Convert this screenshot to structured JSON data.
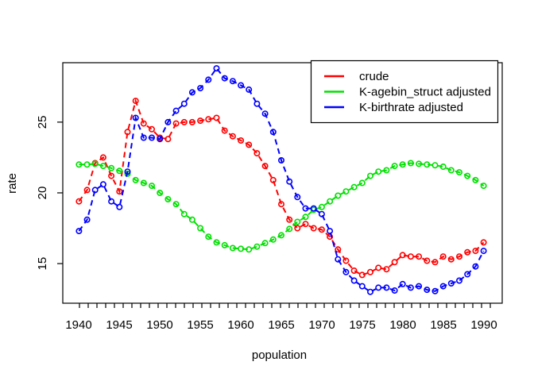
{
  "figure": {
    "background": "#FFFFFF",
    "axis_color": "#000000",
    "ylab": "rate",
    "xlab": "population",
    "y_tick_labels": [
      "15",
      "20",
      "25"
    ],
    "x_tick_labels": [
      "1940",
      "1945",
      "1950",
      "1955",
      "1960",
      "1965",
      "1970",
      "1975",
      "1980",
      "1985",
      "1990"
    ],
    "legend": {
      "position": "top-right",
      "entries": [
        {
          "label": "crude",
          "color": "#FF0000"
        },
        {
          "label": "K-agebin_struct adjusted",
          "color": "#00E000"
        },
        {
          "label": "K-birthrate adjusted",
          "color": "#0000FF"
        }
      ]
    }
  },
  "chart_data": {
    "type": "line",
    "title": "",
    "xlabel": "population",
    "ylabel": "rate",
    "line_style": "dashed",
    "marker": "open-circle",
    "grid": false,
    "legend_position": "top-right",
    "xlim": [
      1938.0,
      1992.3
    ],
    "ylim": [
      12.2,
      29.2
    ],
    "x_ticks_labeled": [
      1940,
      1945,
      1950,
      1955,
      1960,
      1965,
      1970,
      1975,
      1980,
      1985,
      1990
    ],
    "y_ticks": [
      15,
      20,
      25
    ],
    "x": [
      1940,
      1941,
      1942,
      1943,
      1944,
      1945,
      1946,
      1947,
      1948,
      1949,
      1950,
      1951,
      1952,
      1953,
      1954,
      1955,
      1956,
      1957,
      1958,
      1959,
      1960,
      1961,
      1962,
      1963,
      1964,
      1965,
      1966,
      1967,
      1968,
      1969,
      1970,
      1971,
      1972,
      1973,
      1974,
      1975,
      1976,
      1977,
      1978,
      1979,
      1980,
      1981,
      1982,
      1983,
      1984,
      1985,
      1986,
      1987,
      1988,
      1989,
      1990
    ],
    "series": [
      {
        "name": "crude",
        "color": "#FF0000",
        "values": [
          19.4,
          20.2,
          22.1,
          22.5,
          21.2,
          20.1,
          24.3,
          26.5,
          24.9,
          24.5,
          23.9,
          23.8,
          24.9,
          25.0,
          25.0,
          25.1,
          25.2,
          25.3,
          24.4,
          24.0,
          23.7,
          23.4,
          22.8,
          21.9,
          20.9,
          19.2,
          18.1,
          17.5,
          17.8,
          17.5,
          17.4,
          16.9,
          16.0,
          15.2,
          14.5,
          14.2,
          14.4,
          14.7,
          14.6,
          15.1,
          15.6,
          15.5,
          15.5,
          15.2,
          15.1,
          15.5,
          15.3,
          15.5,
          15.8,
          15.9,
          16.5
        ]
      },
      {
        "name": "K-agebin_struct adjusted",
        "color": "#00E000",
        "values": [
          22.0,
          22.0,
          22.05,
          21.9,
          21.75,
          21.55,
          21.35,
          20.9,
          20.7,
          20.5,
          20.0,
          19.55,
          19.2,
          18.5,
          18.1,
          17.5,
          16.9,
          16.5,
          16.3,
          16.1,
          16.05,
          16.0,
          16.2,
          16.45,
          16.7,
          17.0,
          17.45,
          17.95,
          18.3,
          18.8,
          19.0,
          19.4,
          19.8,
          20.1,
          20.4,
          20.7,
          21.2,
          21.5,
          21.6,
          21.9,
          22.0,
          22.1,
          22.05,
          22.0,
          21.95,
          21.85,
          21.6,
          21.45,
          21.2,
          20.9,
          20.5
        ]
      },
      {
        "name": "K-birthrate adjusted",
        "color": "#0000FF",
        "values": [
          17.3,
          18.1,
          20.2,
          20.6,
          19.4,
          19.0,
          21.5,
          25.3,
          23.9,
          23.9,
          23.8,
          25.0,
          25.8,
          26.3,
          27.1,
          27.4,
          28.0,
          28.8,
          28.1,
          27.9,
          27.6,
          27.3,
          26.3,
          25.6,
          24.3,
          22.3,
          20.8,
          19.7,
          18.9,
          18.9,
          18.5,
          17.3,
          15.3,
          14.4,
          13.8,
          13.4,
          13.0,
          13.3,
          13.3,
          13.1,
          13.55,
          13.3,
          13.4,
          13.15,
          13.05,
          13.4,
          13.6,
          13.8,
          14.25,
          14.8,
          15.9
        ]
      }
    ]
  }
}
